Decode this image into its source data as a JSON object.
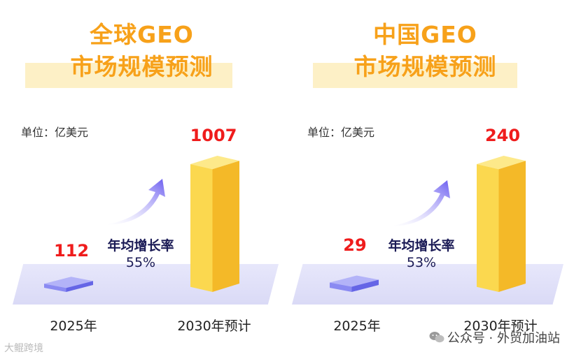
{
  "chart_data": [
    {
      "type": "bar",
      "title": "全球GEO",
      "subtitle": "市场规模预测",
      "unit_label": "单位：亿美元",
      "categories": [
        "2025年",
        "2030年预计"
      ],
      "values": [
        112,
        1007
      ],
      "value_labels": [
        "112",
        "1007"
      ],
      "growth_label": "年均增长率",
      "growth_rate": "55%",
      "colors": {
        "small_bar": "#7b7bf0",
        "big_bar": "#fbd54a",
        "value": "#ef1c1c",
        "title": "#f7a11a"
      }
    },
    {
      "type": "bar",
      "title": "中国GEO",
      "subtitle": "市场规模预测",
      "unit_label": "单位：亿美元",
      "categories": [
        "2025年",
        "2030年预计"
      ],
      "values": [
        29,
        240
      ],
      "value_labels": [
        "29",
        "240"
      ],
      "growth_label": "年均增长率",
      "growth_rate": "53%",
      "colors": {
        "small_bar": "#7b7bf0",
        "big_bar": "#fbd54a",
        "value": "#ef1c1c",
        "title": "#f7a11a"
      }
    }
  ],
  "watermark_left": "大鲲跨境",
  "watermark_right": "公众号 · 外贸加油站",
  "watermark_icon": "wechat-icon"
}
